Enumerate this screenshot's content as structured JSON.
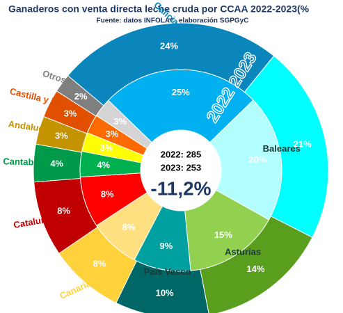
{
  "chart_data": {
    "type": "donut",
    "title": "Ganaderos con venta directa leche cruda por CCAA 2022-2023(%",
    "subtitle": "Fuente: datos INFOLAC, elaboración SGPGyC",
    "center_labels": [
      "2022: 285",
      "2023: 253",
      "-11,2%"
    ],
    "categories": [
      "Galicia",
      "Baleares",
      "Asturias",
      "País Vasco",
      "Canarias",
      "Cataluña",
      "Cantabria",
      "Andalucía",
      "Castilla y León",
      "Otros"
    ],
    "series": [
      {
        "name": "2022",
        "values": [
          25,
          20,
          15,
          9,
          8,
          8,
          4,
          3,
          3,
          3
        ],
        "value_labels": [
          "25%",
          "20%",
          "15%",
          "9%",
          "8%",
          "8%",
          "4%",
          "3%",
          "3%",
          "3%"
        ],
        "colors": [
          "#00b0f0",
          "#b3ffff",
          "#92d050",
          "#00a0a0",
          "#ffe080",
          "#ff0000",
          "#00b050",
          "#ffff00",
          "#ff6a00",
          "#d4d4d4"
        ]
      },
      {
        "name": "2023",
        "values": [
          24,
          21,
          14,
          10,
          8,
          8,
          4,
          3,
          3,
          2
        ],
        "value_labels": [
          "24%",
          "21%",
          "14%",
          "10%",
          "8%",
          "8%",
          "4%",
          "3%",
          "3%",
          "2%"
        ],
        "colors": [
          "#0a86bd",
          "#00ffff",
          "#5a9e1e",
          "#006666",
          "#ffd23c",
          "#c00000",
          "#009a4a",
          "#c49300",
          "#e05000",
          "#7f7f7f"
        ]
      }
    ]
  }
}
